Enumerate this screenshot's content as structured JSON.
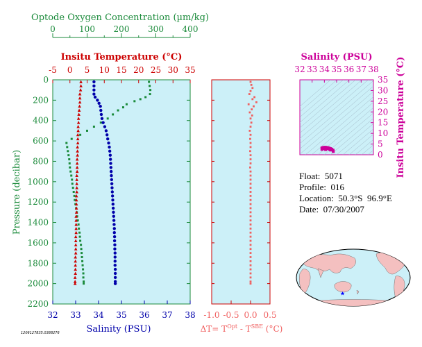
{
  "chart_data": {
    "type": "scatter",
    "panels": {
      "main": {
        "y_label": "Pressure (decibar)",
        "y_range": [
          0,
          2200
        ],
        "y_ticks": [
          "0",
          "200",
          "400",
          "600",
          "800",
          "1000",
          "1200",
          "1400",
          "1600",
          "1800",
          "2000",
          "2200"
        ],
        "oxygen": {
          "label": "Optode Oxygen Concentration (µm/kg)",
          "range": [
            0,
            400
          ],
          "ticks": [
            "0",
            "100",
            "200",
            "300",
            "400"
          ],
          "color": "#1a8a3a",
          "points": [
            [
              280,
              20
            ],
            [
              282,
              60
            ],
            [
              284,
              100
            ],
            [
              283,
              140
            ],
            [
              270,
              170
            ],
            [
              255,
              190
            ],
            [
              238,
              210
            ],
            [
              215,
              240
            ],
            [
              205,
              270
            ],
            [
              190,
              300
            ],
            [
              175,
              340
            ],
            [
              160,
              380
            ],
            [
              140,
              420
            ],
            [
              120,
              460
            ],
            [
              100,
              500
            ],
            [
              80,
              540
            ],
            [
              55,
              580
            ],
            [
              40,
              620
            ],
            [
              42,
              660
            ],
            [
              44,
              700
            ],
            [
              46,
              740
            ],
            [
              48,
              780
            ],
            [
              49,
              820
            ],
            [
              50,
              860
            ],
            [
              52,
              900
            ],
            [
              54,
              940
            ],
            [
              56,
              980
            ],
            [
              57,
              1020
            ],
            [
              59,
              1060
            ],
            [
              61,
              1100
            ],
            [
              63,
              1140
            ],
            [
              64,
              1180
            ],
            [
              66,
              1220
            ],
            [
              68,
              1260
            ],
            [
              70,
              1300
            ],
            [
              71,
              1340
            ],
            [
              73,
              1380
            ],
            [
              75,
              1420
            ],
            [
              76,
              1460
            ],
            [
              78,
              1500
            ],
            [
              79,
              1540
            ],
            [
              80,
              1580
            ],
            [
              82,
              1620
            ],
            [
              83,
              1660
            ],
            [
              84,
              1700
            ],
            [
              85,
              1740
            ],
            [
              86,
              1780
            ],
            [
              87,
              1820
            ],
            [
              88,
              1860
            ],
            [
              89,
              1900
            ],
            [
              89,
              1940
            ],
            [
              90,
              1980
            ],
            [
              90,
              2000
            ]
          ]
        },
        "temperature": {
          "label": "Insitu Temperature (°C)",
          "range": [
            -5,
            35
          ],
          "ticks": [
            "-5",
            "0",
            "5",
            "10",
            "15",
            "20",
            "25",
            "30",
            "35"
          ],
          "color": "#cc0000",
          "points": [
            [
              3.2,
              20
            ],
            [
              3.2,
              60
            ],
            [
              3.1,
              100
            ],
            [
              2.9,
              140
            ],
            [
              2.9,
              180
            ],
            [
              2.9,
              220
            ],
            [
              2.8,
              260
            ],
            [
              2.7,
              300
            ],
            [
              2.6,
              340
            ],
            [
              2.5,
              380
            ],
            [
              2.5,
              420
            ],
            [
              2.4,
              460
            ],
            [
              2.4,
              500
            ],
            [
              2.3,
              540
            ],
            [
              2.3,
              580
            ],
            [
              2.3,
              620
            ],
            [
              2.2,
              660
            ],
            [
              2.2,
              700
            ],
            [
              2.2,
              740
            ],
            [
              2.1,
              780
            ],
            [
              2.1,
              820
            ],
            [
              2.1,
              860
            ],
            [
              2.1,
              900
            ],
            [
              2.0,
              940
            ],
            [
              2.0,
              980
            ],
            [
              2.0,
              1020
            ],
            [
              2.0,
              1060
            ],
            [
              2.0,
              1100
            ],
            [
              1.9,
              1140
            ],
            [
              1.9,
              1180
            ],
            [
              1.9,
              1220
            ],
            [
              1.9,
              1260
            ],
            [
              1.9,
              1300
            ],
            [
              1.8,
              1340
            ],
            [
              1.8,
              1380
            ],
            [
              1.8,
              1420
            ],
            [
              1.8,
              1460
            ],
            [
              1.8,
              1500
            ],
            [
              1.7,
              1540
            ],
            [
              1.7,
              1580
            ],
            [
              1.7,
              1620
            ],
            [
              1.7,
              1660
            ],
            [
              1.7,
              1700
            ],
            [
              1.6,
              1740
            ],
            [
              1.6,
              1780
            ],
            [
              1.6,
              1820
            ],
            [
              1.6,
              1860
            ],
            [
              1.6,
              1900
            ],
            [
              1.5,
              1940
            ],
            [
              1.5,
              1980
            ],
            [
              1.5,
              2000
            ]
          ]
        },
        "salinity": {
          "label": "Salinity (PSU)",
          "range": [
            32,
            38
          ],
          "ticks": [
            "32",
            "33",
            "34",
            "35",
            "36",
            "37",
            "38"
          ],
          "color": "#0000aa",
          "points": [
            [
              33.8,
              20
            ],
            [
              33.8,
              60
            ],
            [
              33.8,
              100
            ],
            [
              33.8,
              140
            ],
            [
              33.85,
              170
            ],
            [
              33.95,
              200
            ],
            [
              34.02,
              230
            ],
            [
              34.08,
              260
            ],
            [
              34.1,
              300
            ],
            [
              34.12,
              340
            ],
            [
              34.15,
              380
            ],
            [
              34.2,
              420
            ],
            [
              34.27,
              460
            ],
            [
              34.33,
              500
            ],
            [
              34.37,
              540
            ],
            [
              34.4,
              580
            ],
            [
              34.44,
              620
            ],
            [
              34.47,
              660
            ],
            [
              34.49,
              700
            ],
            [
              34.51,
              740
            ],
            [
              34.52,
              780
            ],
            [
              34.53,
              820
            ],
            [
              34.54,
              860
            ],
            [
              34.55,
              900
            ],
            [
              34.56,
              940
            ],
            [
              34.57,
              980
            ],
            [
              34.58,
              1020
            ],
            [
              34.59,
              1060
            ],
            [
              34.6,
              1100
            ],
            [
              34.61,
              1140
            ],
            [
              34.62,
              1180
            ],
            [
              34.63,
              1220
            ],
            [
              34.64,
              1260
            ],
            [
              34.65,
              1300
            ],
            [
              34.66,
              1340
            ],
            [
              34.67,
              1380
            ],
            [
              34.68,
              1420
            ],
            [
              34.69,
              1460
            ],
            [
              34.69,
              1500
            ],
            [
              34.7,
              1540
            ],
            [
              34.7,
              1580
            ],
            [
              34.71,
              1620
            ],
            [
              34.71,
              1660
            ],
            [
              34.72,
              1700
            ],
            [
              34.72,
              1740
            ],
            [
              34.72,
              1780
            ],
            [
              34.72,
              1820
            ],
            [
              34.73,
              1860
            ],
            [
              34.73,
              1900
            ],
            [
              34.73,
              1940
            ],
            [
              34.73,
              1980
            ],
            [
              34.73,
              2000
            ]
          ]
        }
      },
      "delta_t": {
        "label_pre": "ΔT= T",
        "label_sup1": "Opt",
        "label_mid": " - T",
        "label_sup2": "SBE",
        "label_post": " (°C)",
        "range": [
          -1.0,
          0.5
        ],
        "ticks": [
          "-1.0",
          "-0.5",
          "0.0",
          "0.5"
        ],
        "color": "#f06060",
        "points": [
          [
            0.0,
            20
          ],
          [
            0.02,
            50
          ],
          [
            0.05,
            80
          ],
          [
            0.0,
            110
          ],
          [
            -0.03,
            140
          ],
          [
            0.1,
            170
          ],
          [
            0.05,
            190
          ],
          [
            0.15,
            220
          ],
          [
            -0.05,
            240
          ],
          [
            0.08,
            260
          ],
          [
            0.03,
            290
          ],
          [
            -0.02,
            320
          ],
          [
            0.04,
            350
          ],
          [
            0.0,
            380
          ],
          [
            0.02,
            420
          ],
          [
            0.0,
            460
          ],
          [
            -0.02,
            500
          ],
          [
            0.0,
            540
          ],
          [
            -0.01,
            580
          ],
          [
            0.0,
            620
          ],
          [
            0.0,
            660
          ],
          [
            -0.01,
            700
          ],
          [
            0.0,
            740
          ],
          [
            0.0,
            780
          ],
          [
            0.0,
            820
          ],
          [
            -0.01,
            860
          ],
          [
            0.0,
            900
          ],
          [
            0.0,
            940
          ],
          [
            0.0,
            980
          ],
          [
            0.0,
            1020
          ],
          [
            0.0,
            1060
          ],
          [
            0.0,
            1100
          ],
          [
            0.0,
            1140
          ],
          [
            0.0,
            1180
          ],
          [
            0.0,
            1220
          ],
          [
            0.0,
            1260
          ],
          [
            0.0,
            1300
          ],
          [
            0.0,
            1340
          ],
          [
            0.0,
            1380
          ],
          [
            0.0,
            1420
          ],
          [
            0.0,
            1460
          ],
          [
            0.0,
            1500
          ],
          [
            0.0,
            1540
          ],
          [
            0.0,
            1580
          ],
          [
            0.0,
            1620
          ],
          [
            0.0,
            1660
          ],
          [
            0.0,
            1700
          ],
          [
            0.0,
            1740
          ],
          [
            0.0,
            1780
          ],
          [
            0.0,
            1820
          ],
          [
            0.0,
            1860
          ],
          [
            0.0,
            1900
          ],
          [
            0.0,
            1940
          ],
          [
            0.0,
            1980
          ],
          [
            0.0,
            2000
          ]
        ]
      },
      "ts": {
        "x_label": "Salinity (PSU)",
        "x_range": [
          32,
          38
        ],
        "x_ticks": [
          "32",
          "33",
          "34",
          "35",
          "36",
          "37",
          "38"
        ],
        "y_label": "Insitu Temperature (°C)",
        "y_range": [
          0,
          35
        ],
        "y_ticks": [
          "0",
          "5",
          "10",
          "15",
          "20",
          "25",
          "30",
          "35"
        ],
        "color": "#cc0099",
        "points": [
          [
            33.8,
            3.2
          ],
          [
            33.9,
            3.4
          ],
          [
            34.0,
            3.5
          ],
          [
            34.1,
            3.5
          ],
          [
            34.2,
            3.4
          ],
          [
            34.3,
            3.3
          ],
          [
            34.4,
            3.1
          ],
          [
            34.5,
            2.9
          ],
          [
            34.6,
            2.6
          ],
          [
            34.7,
            2.2
          ],
          [
            34.72,
            1.8
          ],
          [
            34.73,
            1.5
          ],
          [
            33.85,
            2.8
          ],
          [
            34.0,
            2.9
          ],
          [
            34.2,
            2.8
          ],
          [
            34.4,
            2.6
          ],
          [
            34.6,
            2.3
          ],
          [
            33.8,
            2.5
          ],
          [
            34.1,
            2.4
          ],
          [
            34.5,
            2.2
          ]
        ]
      }
    }
  },
  "info": {
    "float": "Float:  5071",
    "profile": "Profile:  016",
    "location": "Location:  50.3°S  96.9°E",
    "date": "Date:  07/30/2007"
  },
  "footer_id": "1206127835.0388276",
  "colors": {
    "panel_bg": "#ccf0f8",
    "oxygen": "#1a8a3a",
    "temperature": "#cc0000",
    "salinity": "#0000aa",
    "delta_t": "#f06060",
    "ts": "#cc0099",
    "land": "#f4c0c0",
    "map_ocean": "#ccf0f8"
  },
  "map": {
    "marker": "blue-star",
    "location_lat": -50.3,
    "location_lon": 96.9
  }
}
